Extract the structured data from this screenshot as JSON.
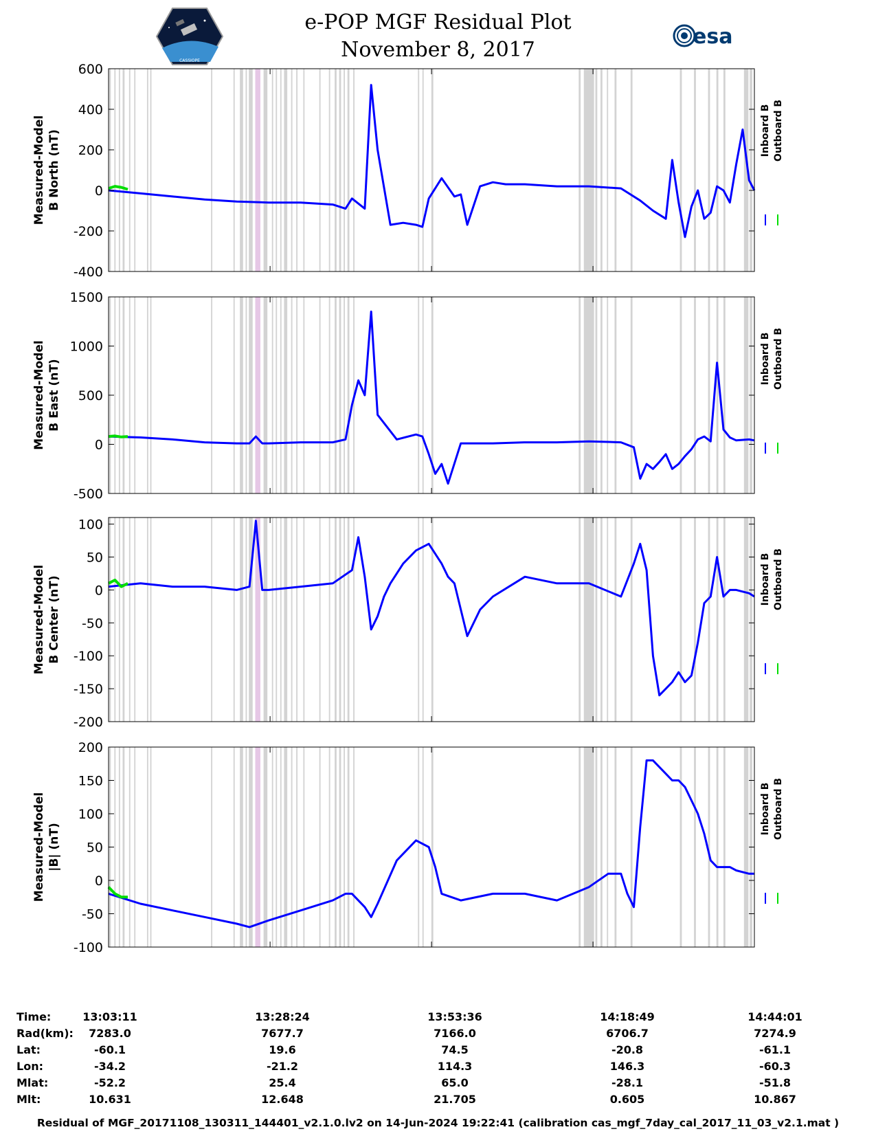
{
  "header": {
    "title_line1": "e-POP MGF Residual Plot",
    "title_line2": "November 8, 2017",
    "left_logo_text": "CASSIOPE",
    "right_logo_text": "esa"
  },
  "colors": {
    "inboard": "#0000ff",
    "outboard": "#00dd00",
    "gap_band": "#d3d3d3",
    "highlight_band": "#e6c7e6"
  },
  "legend": {
    "inboard": "Inboard B",
    "outboard": "Outboard B"
  },
  "x_axis": {
    "time_labels": [
      "13:03:11",
      "13:28:24",
      "13:53:36",
      "14:18:49",
      "14:44:01"
    ],
    "range_minutes": [
      0,
      100.83
    ]
  },
  "chart_data": [
    {
      "type": "line",
      "ylabel_line1": "Measured-Model",
      "ylabel_line2": "B North (nT)",
      "ylim": [
        -400,
        600
      ],
      "yticks": [
        -400,
        -200,
        0,
        200,
        400,
        600
      ],
      "series": [
        {
          "name": "Inboard B",
          "x": [
            0,
            5,
            10,
            15,
            20,
            25,
            30,
            35,
            37,
            38,
            40,
            41,
            42,
            44,
            46,
            48,
            49,
            50,
            52,
            54,
            55,
            56,
            58,
            60,
            62,
            65,
            70,
            75,
            80,
            83,
            85,
            87,
            88,
            89,
            90,
            91,
            92,
            93,
            94,
            95,
            96,
            97,
            98,
            99,
            100,
            100.83
          ],
          "y": [
            0,
            -15,
            -30,
            -45,
            -55,
            -60,
            -60,
            -70,
            -90,
            -40,
            -90,
            520,
            200,
            -170,
            -160,
            -170,
            -180,
            -40,
            60,
            -30,
            -20,
            -170,
            20,
            40,
            30,
            30,
            20,
            20,
            10,
            -50,
            -100,
            -140,
            150,
            -60,
            -230,
            -80,
            0,
            -140,
            -110,
            20,
            0,
            -60,
            130,
            300,
            50,
            0
          ]
        },
        {
          "name": "Outboard B",
          "x": [
            0,
            1,
            2,
            3
          ],
          "y": [
            10,
            20,
            15,
            5
          ]
        }
      ]
    },
    {
      "type": "line",
      "ylabel_line1": "Measured-Model",
      "ylabel_line2": "B East (nT)",
      "ylim": [
        -500,
        1500
      ],
      "yticks": [
        -500,
        0,
        500,
        1000,
        1500
      ],
      "series": [
        {
          "name": "Inboard B",
          "x": [
            0,
            5,
            10,
            15,
            20,
            22,
            23,
            24,
            25,
            30,
            35,
            37,
            38,
            39,
            40,
            41,
            42,
            45,
            48,
            49,
            50,
            51,
            52,
            53,
            55,
            60,
            65,
            70,
            75,
            80,
            82,
            83,
            84,
            85,
            86,
            87,
            88,
            89,
            90,
            91,
            92,
            93,
            94,
            95,
            96,
            97,
            98,
            100,
            100.83
          ],
          "y": [
            80,
            70,
            50,
            20,
            10,
            10,
            80,
            10,
            10,
            20,
            20,
            50,
            400,
            650,
            500,
            1350,
            300,
            50,
            100,
            80,
            -100,
            -300,
            -200,
            -400,
            10,
            10,
            20,
            20,
            30,
            20,
            -30,
            -350,
            -200,
            -250,
            -180,
            -100,
            -250,
            -200,
            -120,
            -50,
            50,
            80,
            30,
            830,
            150,
            70,
            40,
            50,
            40
          ]
        },
        {
          "name": "Outboard B",
          "x": [
            0,
            1,
            2,
            3
          ],
          "y": [
            80,
            85,
            75,
            80
          ]
        }
      ]
    },
    {
      "type": "line",
      "ylabel_line1": "Measured-Model",
      "ylabel_line2": "B Center (nT)",
      "ylim": [
        -200,
        110
      ],
      "yticks": [
        -200,
        -150,
        -100,
        -50,
        0,
        50,
        100
      ],
      "series": [
        {
          "name": "Inboard B",
          "x": [
            0,
            5,
            10,
            15,
            20,
            22,
            23,
            24,
            25,
            30,
            35,
            38,
            39,
            40,
            41,
            42,
            43,
            44,
            46,
            48,
            50,
            52,
            53,
            54,
            56,
            58,
            60,
            65,
            70,
            75,
            80,
            82,
            83,
            84,
            85,
            86,
            87,
            88,
            89,
            90,
            91,
            92,
            93,
            94,
            95,
            96,
            97,
            98,
            100,
            100.83
          ],
          "y": [
            5,
            10,
            5,
            5,
            0,
            5,
            105,
            0,
            0,
            5,
            10,
            30,
            80,
            20,
            -60,
            -40,
            -10,
            10,
            40,
            60,
            70,
            40,
            20,
            10,
            -70,
            -30,
            -10,
            20,
            10,
            10,
            -10,
            40,
            70,
            30,
            -100,
            -160,
            -150,
            -140,
            -125,
            -140,
            -130,
            -80,
            -20,
            -10,
            50,
            -10,
            0,
            0,
            -5,
            -10
          ]
        },
        {
          "name": "Outboard B",
          "x": [
            0,
            1,
            2,
            3
          ],
          "y": [
            10,
            15,
            5,
            10
          ]
        }
      ]
    },
    {
      "type": "line",
      "ylabel_line1": "Measured-Model",
      "ylabel_line2": "|B| (nT)",
      "ylim": [
        -100,
        200
      ],
      "yticks": [
        -100,
        -50,
        0,
        50,
        100,
        150,
        200
      ],
      "series": [
        {
          "name": "Inboard B",
          "x": [
            0,
            5,
            10,
            15,
            20,
            22,
            25,
            30,
            35,
            37,
            38,
            40,
            41,
            42,
            45,
            48,
            50,
            51,
            52,
            55,
            60,
            65,
            70,
            75,
            78,
            80,
            81,
            82,
            83,
            84,
            85,
            86,
            87,
            88,
            89,
            90,
            91,
            92,
            93,
            94,
            95,
            96,
            97,
            98,
            100,
            100.83
          ],
          "y": [
            -20,
            -35,
            -45,
            -55,
            -65,
            -70,
            -60,
            -45,
            -30,
            -20,
            -20,
            -40,
            -55,
            -35,
            30,
            60,
            50,
            20,
            -20,
            -30,
            -20,
            -20,
            -30,
            -10,
            10,
            10,
            -20,
            -40,
            80,
            180,
            180,
            170,
            160,
            150,
            150,
            140,
            120,
            100,
            70,
            30,
            20,
            20,
            20,
            15,
            10,
            10
          ]
        },
        {
          "name": "Outboard B",
          "x": [
            0,
            1,
            2,
            3
          ],
          "y": [
            -10,
            -20,
            -25,
            -25
          ]
        }
      ]
    }
  ],
  "gap_bands": [
    {
      "start": 0.1,
      "end": 0.35
    },
    {
      "start": 0.9,
      "end": 1.1
    },
    {
      "start": 1.6,
      "end": 1.8
    },
    {
      "start": 2.2,
      "end": 2.5
    },
    {
      "start": 3.2,
      "end": 3.4
    },
    {
      "start": 4.0,
      "end": 4.2
    },
    {
      "start": 6.0,
      "end": 6.2
    },
    {
      "start": 6.5,
      "end": 6.7
    },
    {
      "start": 16.0,
      "end": 16.2
    },
    {
      "start": 19.5,
      "end": 19.7
    },
    {
      "start": 20.5,
      "end": 21.0
    },
    {
      "start": 21.4,
      "end": 21.6
    },
    {
      "start": 21.9,
      "end": 22.5
    },
    {
      "start": 23.3,
      "end": 23.5
    },
    {
      "start": 24.2,
      "end": 24.8
    },
    {
      "start": 25.5,
      "end": 25.7
    },
    {
      "start": 26.1,
      "end": 26.3
    },
    {
      "start": 26.8,
      "end": 27.0
    },
    {
      "start": 27.4,
      "end": 27.9
    },
    {
      "start": 28.5,
      "end": 28.7
    },
    {
      "start": 29.3,
      "end": 29.5
    },
    {
      "start": 30.4,
      "end": 30.6
    },
    {
      "start": 32.9,
      "end": 33.1
    },
    {
      "start": 34.4,
      "end": 34.6
    },
    {
      "start": 35.3,
      "end": 35.6
    },
    {
      "start": 36.0,
      "end": 36.3
    },
    {
      "start": 36.7,
      "end": 36.9
    },
    {
      "start": 37.3,
      "end": 37.6
    },
    {
      "start": 38.2,
      "end": 38.4
    },
    {
      "start": 48.3,
      "end": 48.5
    },
    {
      "start": 49.0,
      "end": 49.2
    },
    {
      "start": 50.4,
      "end": 50.7
    },
    {
      "start": 73.4,
      "end": 73.7
    },
    {
      "start": 74.2,
      "end": 75.8
    },
    {
      "start": 76.0,
      "end": 76.3
    },
    {
      "start": 76.8,
      "end": 77.1
    },
    {
      "start": 77.8,
      "end": 78.0
    },
    {
      "start": 79.0,
      "end": 79.3
    },
    {
      "start": 81.5,
      "end": 81.8
    },
    {
      "start": 89.2,
      "end": 89.5
    },
    {
      "start": 91.4,
      "end": 91.7
    },
    {
      "start": 93.6,
      "end": 93.9
    },
    {
      "start": 94.9,
      "end": 95.2
    },
    {
      "start": 96.0,
      "end": 96.3
    },
    {
      "start": 99.2,
      "end": 99.9
    },
    {
      "start": 100.1,
      "end": 100.5
    }
  ],
  "highlight_bands": [
    {
      "start": 22.9,
      "end": 23.7
    }
  ],
  "info_table": {
    "labels": [
      "Time:",
      "Rad(km):",
      "Lat:",
      "Lon:",
      "Mlat:",
      "Mlt:"
    ],
    "columns": [
      [
        "13:03:11",
        "7283.0",
        "-60.1",
        "-34.2",
        "-52.2",
        "10.631"
      ],
      [
        "13:28:24",
        "7677.7",
        "19.6",
        "-21.2",
        "25.4",
        "12.648"
      ],
      [
        "13:53:36",
        "7166.0",
        "74.5",
        "114.3",
        "65.0",
        "21.705"
      ],
      [
        "14:18:49",
        "6706.7",
        "-20.8",
        "146.3",
        "-28.1",
        "0.605"
      ],
      [
        "14:44:01",
        "7274.9",
        "-61.1",
        "-60.3",
        "-51.8",
        "10.867"
      ]
    ]
  },
  "footer": "Residual of MGF_20171108_130311_144401_v2.1.0.lv2 on 14-Jun-2024 19:22:41 (calibration cas_mgf_7day_cal_2017_11_03_v2.1.mat )"
}
